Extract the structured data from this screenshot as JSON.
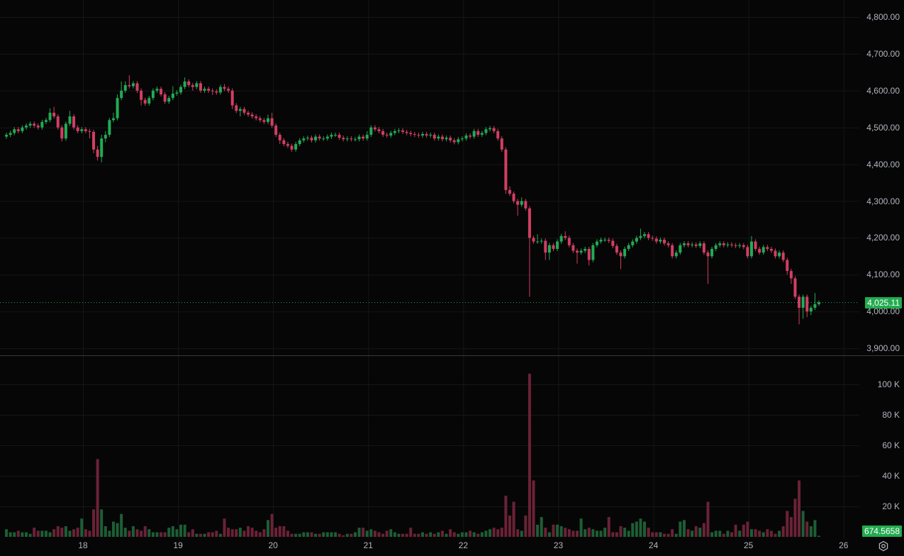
{
  "colors": {
    "background": "#060606",
    "grid": "#161616",
    "up": "#22ab55",
    "down": "#d13e64",
    "volume_up": "#1d5e35",
    "volume_down": "#6b2237",
    "last_price_badge": "#22ab4f",
    "axis_text": "#b2b5be",
    "pane_divider": "#3a3a3a"
  },
  "icons": {
    "settings": "gear-icon"
  },
  "chart_data": {
    "type": "candlestick",
    "interval": "1h",
    "grid": true,
    "x_ticks": [
      "18",
      "19",
      "20",
      "21",
      "22",
      "23",
      "24",
      "25",
      "26"
    ],
    "y_ticks": [
      "4,800.00",
      "4,700.00",
      "4,600.00",
      "4,500.00",
      "4,400.00",
      "4,300.00",
      "4,200.00",
      "4,100.00",
      "4,000.00",
      "3,900.00"
    ],
    "y_tick_values": [
      4800,
      4700,
      4600,
      4500,
      4400,
      4300,
      4200,
      4100,
      4000,
      3900
    ],
    "ylim": [
      3900,
      4800
    ],
    "last_price": 4025.11,
    "last_price_label": "4,025.11",
    "volume_unit": "K",
    "volume_ticks": [
      "100 K",
      "80 K",
      "60 K",
      "40 K",
      "20 K"
    ],
    "volume_tick_values": [
      100,
      80,
      60,
      40,
      20
    ],
    "last_volume_label": "674.5658",
    "open": [
      4475,
      4480,
      4485,
      4495,
      4490,
      4500,
      4505,
      4510,
      4505,
      4500,
      4515,
      4520,
      4540,
      4530,
      4500,
      4470,
      4510,
      4530,
      4500,
      4490,
      4495,
      4490,
      4488,
      4440,
      4420,
      4470,
      4480,
      4520,
      4525,
      4580,
      4600,
      4615,
      4612,
      4620,
      4600,
      4575,
      4565,
      4580,
      4600,
      4605,
      4590,
      4570,
      4580,
      4592,
      4595,
      4610,
      4625,
      4615,
      4610,
      4620,
      4600,
      4605,
      4600,
      4598,
      4595,
      4610,
      4605,
      4600,
      4560,
      4545,
      4550,
      4540,
      4535,
      4530,
      4525,
      4520,
      4515,
      4525,
      4505,
      4480,
      4465,
      4455,
      4450,
      4440,
      4455,
      4465,
      4470,
      4472,
      4465,
      4475,
      4470,
      4470,
      4475,
      4480,
      4480,
      4472,
      4468,
      4470,
      4468,
      4468,
      4475,
      4470,
      4480,
      4500,
      4495,
      4490,
      4480,
      4478,
      4485,
      4490,
      4492,
      4488,
      4485,
      4482,
      4480,
      4478,
      4482,
      4478,
      4480,
      4470,
      4475,
      4468,
      4472,
      4465,
      4460,
      4468,
      4470,
      4478,
      4475,
      4490,
      4480,
      4485,
      4495,
      4498,
      4490,
      4470,
      4440,
      4330,
      4320,
      4300,
      4290,
      4300,
      4280,
      4200,
      4190,
      4190,
      4192,
      4160,
      4180,
      4170,
      4190,
      4205,
      4200,
      4180,
      4165,
      4160,
      4165,
      4170,
      4140,
      4180,
      4190,
      4195,
      4195,
      4192,
      4178,
      4160,
      4150,
      4170,
      4180,
      4190,
      4200,
      4205,
      4210,
      4200,
      4198,
      4190,
      4195,
      4185,
      4180,
      4150,
      4160,
      4180,
      4185,
      4180,
      4182,
      4178,
      4185,
      4160,
      4150,
      4170,
      4180,
      4185,
      4180,
      4182,
      4180,
      4178,
      4180,
      4175,
      4150,
      4190,
      4170,
      4160,
      4175,
      4170,
      4165,
      4150,
      4160,
      4140,
      4110,
      4090,
      4040,
      4010,
      4040,
      4000,
      4010,
      4020
    ],
    "high": [
      4486,
      4491,
      4501,
      4501,
      4506,
      4511,
      4516,
      4516,
      4511,
      4521,
      4526,
      4552,
      4556,
      4536,
      4506,
      4516,
      4545,
      4536,
      4506,
      4501,
      4501,
      4496,
      4494,
      4450,
      4480,
      4490,
      4526,
      4540,
      4590,
      4625,
      4625,
      4642,
      4626,
      4626,
      4606,
      4581,
      4586,
      4606,
      4611,
      4611,
      4596,
      4586,
      4612,
      4601,
      4616,
      4636,
      4631,
      4621,
      4626,
      4626,
      4611,
      4611,
      4606,
      4604,
      4616,
      4618,
      4611,
      4606,
      4566,
      4556,
      4556,
      4546,
      4541,
      4536,
      4531,
      4526,
      4535,
      4540,
      4511,
      4486,
      4471,
      4461,
      4456,
      4461,
      4471,
      4476,
      4478,
      4478,
      4481,
      4481,
      4476,
      4481,
      4486,
      4486,
      4486,
      4478,
      4476,
      4476,
      4474,
      4481,
      4481,
      4490,
      4506,
      4506,
      4501,
      4496,
      4486,
      4491,
      4496,
      4498,
      4498,
      4494,
      4491,
      4488,
      4486,
      4488,
      4488,
      4486,
      4486,
      4481,
      4481,
      4478,
      4478,
      4471,
      4474,
      4476,
      4484,
      4484,
      4496,
      4496,
      4491,
      4501,
      4504,
      4504,
      4496,
      4476,
      4446,
      4340,
      4326,
      4306,
      4310,
      4306,
      4286,
      4206,
      4210,
      4198,
      4198,
      4186,
      4186,
      4196,
      4211,
      4218,
      4206,
      4186,
      4171,
      4171,
      4176,
      4176,
      4186,
      4196,
      4201,
      4201,
      4201,
      4198,
      4184,
      4166,
      4176,
      4186,
      4196,
      4206,
      4225,
      4216,
      4216,
      4206,
      4204,
      4201,
      4201,
      4191,
      4186,
      4166,
      4186,
      4191,
      4191,
      4188,
      4188,
      4191,
      4191,
      4166,
      4176,
      4186,
      4191,
      4191,
      4188,
      4188,
      4186,
      4186,
      4186,
      4181,
      4205,
      4196,
      4176,
      4181,
      4181,
      4176,
      4171,
      4166,
      4166,
      4146,
      4116,
      4096,
      4046,
      4046,
      4046,
      4016,
      4050,
      4030
    ],
    "low": [
      4469,
      4474,
      4479,
      4484,
      4484,
      4494,
      4499,
      4499,
      4494,
      4494,
      4509,
      4514,
      4524,
      4494,
      4462,
      4464,
      4504,
      4494,
      4484,
      4484,
      4484,
      4470,
      4430,
      4410,
      4405,
      4460,
      4474,
      4514,
      4519,
      4574,
      4594,
      4606,
      4606,
      4594,
      4560,
      4559,
      4559,
      4574,
      4594,
      4584,
      4564,
      4564,
      4574,
      4586,
      4589,
      4604,
      4609,
      4600,
      4604,
      4594,
      4594,
      4594,
      4588,
      4589,
      4589,
      4599,
      4594,
      4550,
      4539,
      4530,
      4534,
      4529,
      4524,
      4519,
      4514,
      4509,
      4509,
      4499,
      4474,
      4455,
      4449,
      4444,
      4434,
      4434,
      4449,
      4459,
      4464,
      4459,
      4459,
      4464,
      4464,
      4464,
      4469,
      4474,
      4466,
      4462,
      4462,
      4462,
      4462,
      4462,
      4464,
      4464,
      4474,
      4489,
      4484,
      4474,
      4472,
      4472,
      4479,
      4484,
      4482,
      4479,
      4476,
      4474,
      4472,
      4472,
      4472,
      4472,
      4464,
      4464,
      4462,
      4462,
      4459,
      4454,
      4454,
      4462,
      4464,
      4469,
      4469,
      4474,
      4474,
      4479,
      4489,
      4484,
      4464,
      4434,
      4320,
      4314,
      4294,
      4260,
      4284,
      4274,
      4040,
      4184,
      4184,
      4184,
      4140,
      4140,
      4164,
      4164,
      4184,
      4194,
      4174,
      4159,
      4130,
      4154,
      4159,
      4125,
      4134,
      4174,
      4184,
      4189,
      4186,
      4172,
      4154,
      4115,
      4144,
      4164,
      4174,
      4184,
      4194,
      4199,
      4194,
      4192,
      4184,
      4184,
      4179,
      4174,
      4144,
      4144,
      4154,
      4174,
      4174,
      4174,
      4172,
      4172,
      4154,
      4075,
      4144,
      4164,
      4174,
      4174,
      4174,
      4174,
      4172,
      4172,
      4169,
      4144,
      4144,
      4164,
      4154,
      4154,
      4164,
      4159,
      4144,
      4144,
      4134,
      4100,
      4075,
      4034,
      3965,
      3980,
      3985,
      3990,
      4004,
      4015
    ],
    "close": [
      4480,
      4485,
      4495,
      4490,
      4500,
      4505,
      4510,
      4505,
      4500,
      4515,
      4520,
      4540,
      4530,
      4500,
      4470,
      4510,
      4530,
      4500,
      4490,
      4495,
      4490,
      4488,
      4440,
      4420,
      4470,
      4480,
      4520,
      4525,
      4580,
      4600,
      4615,
      4612,
      4620,
      4600,
      4575,
      4565,
      4580,
      4600,
      4605,
      4590,
      4570,
      4580,
      4592,
      4595,
      4610,
      4625,
      4615,
      4610,
      4620,
      4600,
      4605,
      4600,
      4598,
      4595,
      4610,
      4605,
      4600,
      4560,
      4545,
      4550,
      4540,
      4535,
      4530,
      4525,
      4520,
      4515,
      4525,
      4505,
      4480,
      4465,
      4455,
      4450,
      4440,
      4455,
      4465,
      4470,
      4472,
      4465,
      4475,
      4470,
      4470,
      4475,
      4480,
      4480,
      4472,
      4468,
      4470,
      4468,
      4468,
      4475,
      4470,
      4480,
      4500,
      4495,
      4490,
      4480,
      4478,
      4485,
      4490,
      4492,
      4488,
      4485,
      4482,
      4480,
      4478,
      4482,
      4478,
      4480,
      4470,
      4475,
      4468,
      4472,
      4465,
      4460,
      4468,
      4470,
      4478,
      4475,
      4490,
      4480,
      4485,
      4495,
      4498,
      4490,
      4470,
      4440,
      4330,
      4320,
      4300,
      4290,
      4300,
      4280,
      4200,
      4190,
      4190,
      4192,
      4160,
      4180,
      4170,
      4190,
      4205,
      4200,
      4180,
      4165,
      4160,
      4165,
      4170,
      4140,
      4180,
      4190,
      4195,
      4195,
      4192,
      4178,
      4160,
      4150,
      4170,
      4180,
      4190,
      4200,
      4205,
      4210,
      4200,
      4198,
      4190,
      4195,
      4185,
      4180,
      4150,
      4160,
      4180,
      4185,
      4180,
      4182,
      4178,
      4185,
      4160,
      4150,
      4170,
      4180,
      4185,
      4180,
      4182,
      4180,
      4178,
      4180,
      4175,
      4150,
      4190,
      4170,
      4160,
      4175,
      4170,
      4165,
      4150,
      4160,
      4140,
      4110,
      4090,
      4040,
      4010,
      4040,
      4000,
      4010,
      4020,
      4025.11
    ],
    "volume": [
      5,
      3,
      3,
      4,
      3,
      3,
      2,
      6,
      4,
      4,
      4,
      3,
      5,
      7,
      6,
      7,
      4,
      5,
      6,
      12,
      5,
      4,
      18,
      51,
      18,
      7,
      4,
      10,
      9,
      15,
      6,
      4,
      7,
      5,
      4,
      7,
      5,
      3,
      3,
      3,
      3,
      6,
      7,
      5,
      8,
      8,
      3,
      5,
      2,
      2,
      2,
      3,
      3,
      4,
      2,
      12,
      6,
      5,
      5,
      6,
      4,
      7,
      6,
      4,
      3,
      5,
      11,
      15,
      6,
      7,
      7,
      4,
      2,
      2,
      2,
      3,
      3,
      3,
      2,
      2,
      3,
      3,
      3,
      3,
      2,
      1,
      2,
      2,
      3,
      6,
      6,
      4,
      5,
      4,
      3,
      2,
      4,
      5,
      3,
      2,
      2,
      2,
      6,
      2,
      2,
      3,
      2,
      3,
      2,
      3,
      4,
      2,
      5,
      3,
      2,
      3,
      3,
      4,
      3,
      2,
      3,
      4,
      5,
      6,
      5,
      6,
      27,
      14,
      23,
      5,
      4,
      14,
      107,
      37,
      8,
      13,
      6,
      3,
      8,
      8,
      7,
      6,
      5,
      4,
      4,
      12,
      5,
      6,
      5,
      4,
      4,
      6,
      13,
      3,
      3,
      7,
      6,
      4,
      9,
      10,
      12,
      10,
      6,
      3,
      3,
      3,
      2,
      2,
      5,
      2,
      10,
      11,
      5,
      4,
      7,
      6,
      9,
      23,
      3,
      4,
      4,
      2,
      4,
      3,
      8,
      4,
      8,
      10,
      5,
      5,
      4,
      3,
      5,
      4,
      2,
      4,
      7,
      17,
      13,
      25,
      37,
      17,
      10,
      7,
      11,
      0.6745658
    ]
  }
}
